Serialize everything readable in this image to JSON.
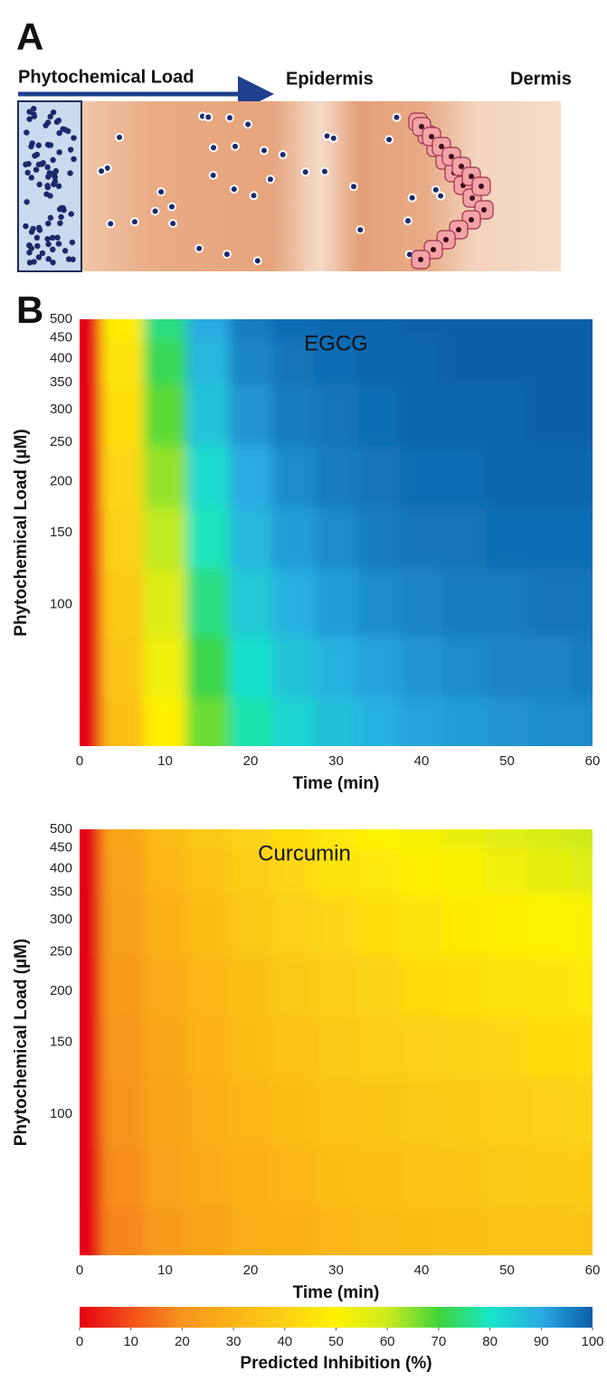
{
  "panel_a": {
    "label": "A",
    "load_label": "Phytochemical Load",
    "epidermis_label": "Epidermis",
    "dermis_label": "Dermis"
  },
  "panel_b_label": "B",
  "chart_data": [
    {
      "type": "heatmap",
      "title": "EGCG",
      "xlabel": "Time (min)",
      "ylabel": "Phytochemical Load (µM)",
      "x": [
        0,
        5,
        10,
        15,
        20,
        25,
        30,
        35,
        40,
        45,
        50,
        55,
        60
      ],
      "y": [
        50,
        70,
        100,
        150,
        200,
        300,
        400,
        500
      ],
      "z": [
        [
          0,
          34,
          49,
          67,
          78,
          83,
          87,
          89,
          91,
          92,
          93,
          94,
          94
        ],
        [
          0,
          36,
          53,
          71,
          81,
          86,
          89,
          91,
          93,
          94,
          95,
          95,
          96
        ],
        [
          0,
          38,
          57,
          75,
          85,
          89,
          92,
          94,
          95,
          96,
          96,
          97,
          97
        ],
        [
          0,
          40,
          61,
          79,
          88,
          92,
          94,
          96,
          97,
          97,
          98,
          98,
          98
        ],
        [
          0,
          42,
          64,
          82,
          90,
          94,
          96,
          97,
          98,
          98,
          99,
          99,
          99
        ],
        [
          0,
          44,
          68,
          86,
          93,
          96,
          97,
          98,
          99,
          99,
          99,
          100,
          100
        ],
        [
          0,
          46,
          72,
          88,
          95,
          97,
          98,
          99,
          99,
          100,
          100,
          100,
          100
        ],
        [
          0,
          48,
          75,
          90,
          96,
          98,
          99,
          99,
          100,
          100,
          100,
          100,
          100
        ]
      ],
      "xlim": [
        0,
        60
      ],
      "xticks": [
        0,
        10,
        20,
        30,
        40,
        50,
        60
      ],
      "ylim": [
        45,
        500
      ],
      "ylog": true,
      "yticks": [
        100,
        150,
        200,
        250,
        300,
        350,
        400,
        450,
        500
      ]
    },
    {
      "type": "heatmap",
      "title": "Curcumin",
      "xlabel": "Time (min)",
      "ylabel": "Phytochemical Load (µM)",
      "x": [
        0,
        5,
        10,
        15,
        20,
        25,
        30,
        35,
        40,
        45,
        50,
        55,
        60
      ],
      "y": [
        50,
        70,
        100,
        150,
        200,
        300,
        400,
        500
      ],
      "z": [
        [
          0,
          18,
          22,
          25,
          28,
          29,
          31,
          32,
          33,
          34,
          35,
          35,
          36
        ],
        [
          0,
          19,
          24,
          27,
          29,
          31,
          33,
          34,
          35,
          36,
          37,
          38,
          38
        ],
        [
          0,
          20,
          25,
          28,
          31,
          33,
          35,
          36,
          37,
          38,
          39,
          40,
          41
        ],
        [
          0,
          21,
          26,
          30,
          33,
          35,
          37,
          39,
          40,
          41,
          42,
          43,
          44
        ],
        [
          0,
          22,
          27,
          31,
          34,
          37,
          39,
          41,
          43,
          44,
          45,
          46,
          47
        ],
        [
          0,
          23,
          29,
          33,
          37,
          40,
          42,
          44,
          46,
          48,
          49,
          50,
          51
        ],
        [
          0,
          24,
          31,
          35,
          39,
          42,
          45,
          47,
          49,
          51,
          53,
          55,
          56
        ],
        [
          0,
          25,
          32,
          37,
          41,
          44,
          47,
          50,
          52,
          54,
          56,
          58,
          60
        ]
      ],
      "xlim": [
        0,
        60
      ],
      "xticks": [
        0,
        10,
        20,
        30,
        40,
        50,
        60
      ],
      "ylim": [
        45,
        500
      ],
      "ylog": true,
      "yticks": [
        100,
        150,
        200,
        250,
        300,
        350,
        400,
        450,
        500
      ]
    }
  ],
  "colorbar": {
    "label": "Predicted Inhibition (%)",
    "clim": [
      0,
      100
    ],
    "ticks": [
      0,
      10,
      20,
      30,
      40,
      50,
      60,
      70,
      80,
      90,
      100
    ],
    "colormap": [
      "#e60012",
      "#f4501a",
      "#f7941d",
      "#fbb315",
      "#fcd116",
      "#fff200",
      "#cdeb1e",
      "#3fd43a",
      "#16e6c9",
      "#29abe2",
      "#0b5ea8"
    ]
  }
}
